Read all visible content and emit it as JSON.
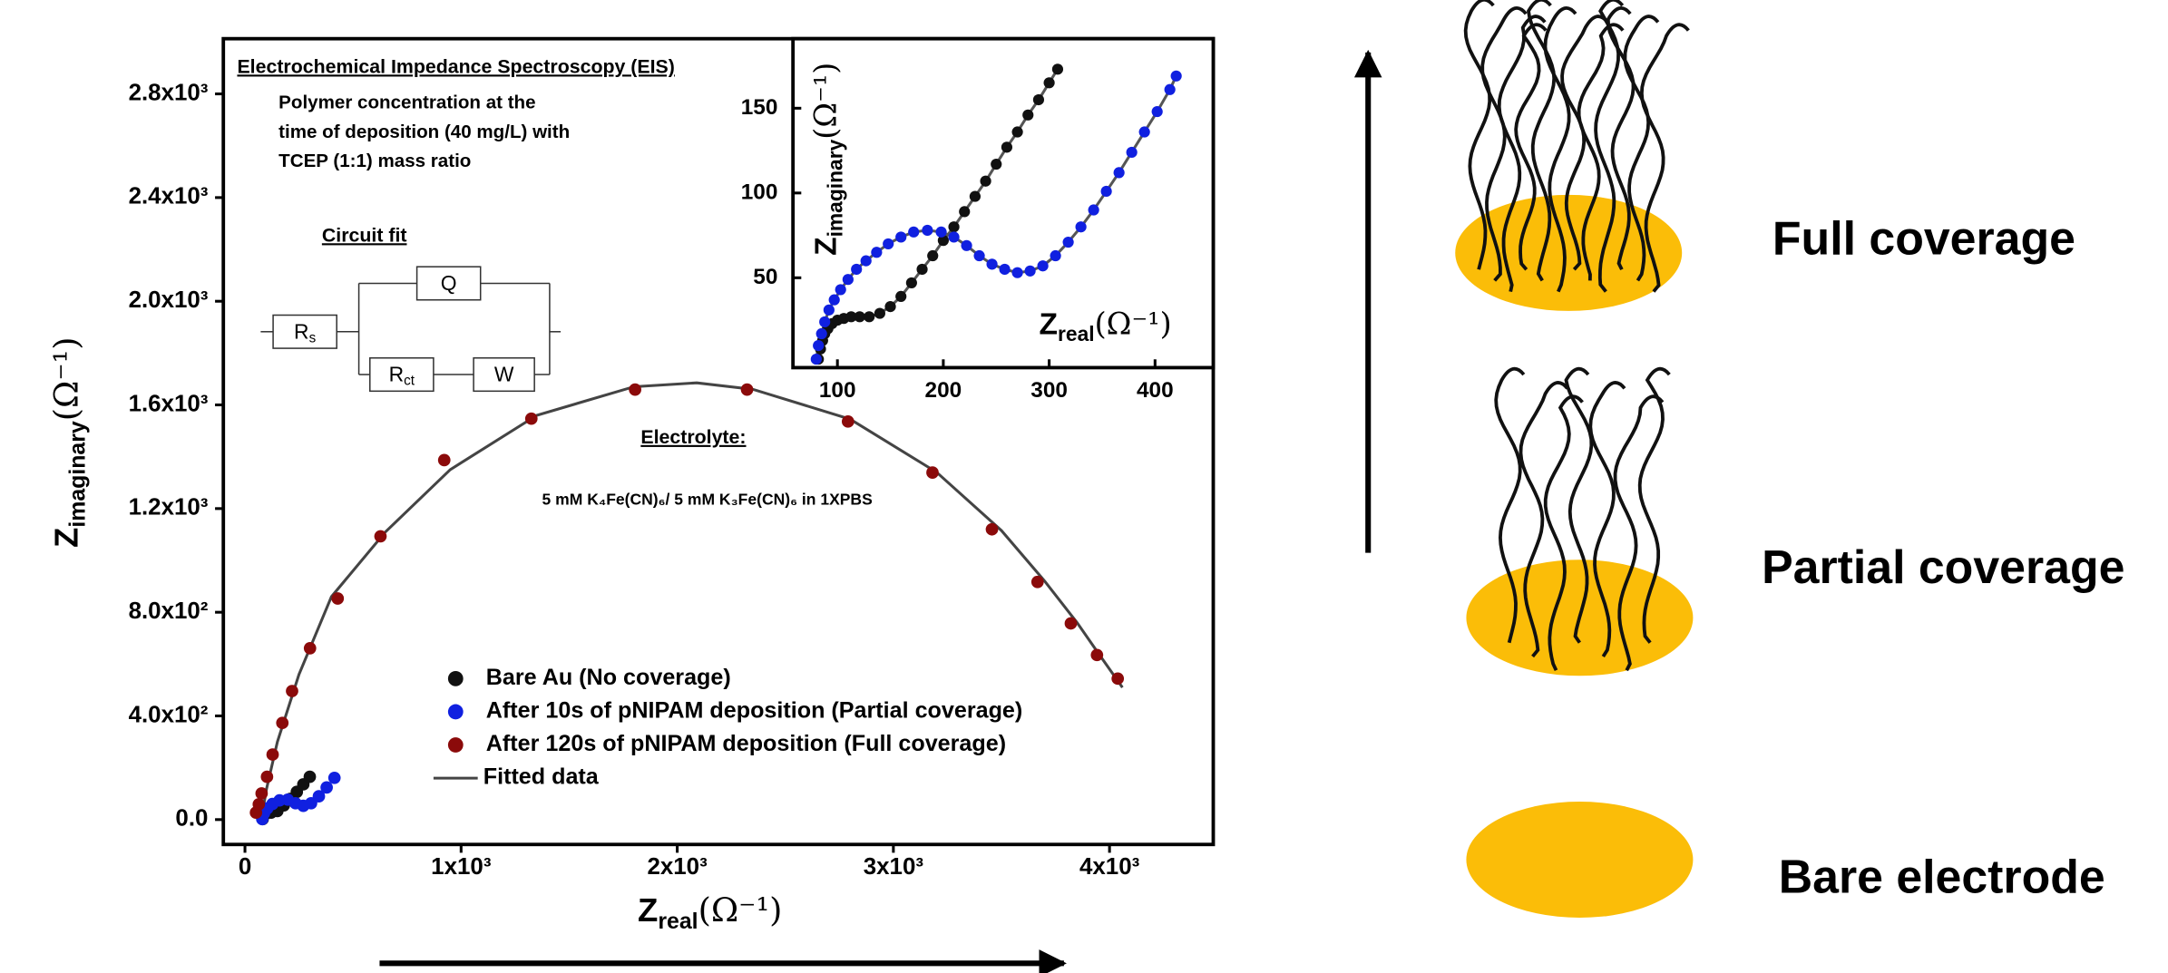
{
  "chart_data": [
    {
      "type": "scatter",
      "xlabel": [
        "Z",
        "real",
        "(Ω⁻¹)"
      ],
      "ylabel": [
        "Z",
        "imaginary",
        "(Ω⁻¹)"
      ],
      "xlim": [
        -100,
        4480
      ],
      "ylim": [
        -96,
        3013
      ],
      "xticks": [
        0,
        {
          "value": 1000,
          "label": "1x10³"
        },
        {
          "value": 2000,
          "label": "2x10³"
        },
        {
          "value": 3000,
          "label": "3x10³"
        },
        {
          "value": 4000,
          "label": "4x10³"
        }
      ],
      "yticks": [
        {
          "value": 0,
          "label": "0.0"
        },
        {
          "value": 400,
          "label": "4.0x10²"
        },
        {
          "value": 800,
          "label": "8.0x10²"
        },
        {
          "value": 1200,
          "label": "1.2x10³"
        },
        {
          "value": 1600,
          "label": "1.6x10³"
        },
        {
          "value": 2000,
          "label": "2.0x10³"
        },
        {
          "value": 2400,
          "label": "2.4x10³"
        },
        {
          "value": 2800,
          "label": "2.8x10³"
        }
      ],
      "legend": "lower center",
      "series": [
        {
          "name": "Bare Au (No coverage)",
          "color": "#111111",
          "mode": "markers",
          "x": [
            82,
            88,
            100,
            121,
            150,
            180,
            210,
            240,
            270,
            300
          ],
          "values": [
            2,
            17,
            25,
            27,
            33,
            55,
            80,
            107,
            136,
            165
          ]
        },
        {
          "name": "After 10s of pNIPAM deposition (Partial coverage)",
          "color": "#1020e0",
          "mode": "markers",
          "x": [
            80,
            88,
            103,
            127,
            160,
            198,
            234,
            270,
            306,
            342,
            378,
            414
          ],
          "values": [
            2,
            24,
            43,
            60,
            74,
            77,
            63,
            53,
            63,
            90,
            124,
            161
          ]
        },
        {
          "name": "After 120s of pNIPAM deposition (Full coverage)",
          "color": "#8b0a0a",
          "mode": "markers",
          "x": [
            51,
            64,
            77,
            102,
            128,
            173,
            218,
            301,
            429,
            627,
            922,
            1325,
            1805,
            2323,
            2790,
            3181,
            3456,
            3667,
            3821,
            3942,
            4038
          ],
          "values": [
            27,
            59,
            101,
            165,
            251,
            373,
            496,
            661,
            853,
            1093,
            1387,
            1547,
            1659,
            1659,
            1536,
            1339,
            1120,
            917,
            757,
            635,
            544
          ]
        },
        {
          "name": "Fitted data",
          "color": "#444444",
          "mode": "line",
          "x": [
            75,
            100,
            150,
            250,
            400,
            650,
            950,
            1350,
            1800,
            2090,
            2350,
            2800,
            3200,
            3500,
            3700,
            3850,
            3950,
            4060
          ],
          "values": [
            0,
            120,
            300,
            560,
            860,
            1110,
            1350,
            1560,
            1670,
            1685,
            1660,
            1545,
            1340,
            1115,
            920,
            760,
            640,
            510
          ]
        }
      ]
    },
    {
      "type": "scatter",
      "xlabel": [
        "Z",
        "real",
        "(Ω⁻¹)"
      ],
      "ylabel": [
        "Z",
        "imaginary",
        "(Ω⁻¹)"
      ],
      "xlim": [
        58,
        455
      ],
      "ylim": [
        -3,
        191
      ],
      "xticks": [
        100,
        200,
        300,
        400
      ],
      "yticks": [
        50,
        100,
        150
      ],
      "line_color": "#555555",
      "series": [
        {
          "color": "#111111",
          "mode": "lines+markers",
          "x": [
            82,
            84,
            86,
            88,
            91,
            95,
            100,
            106,
            113,
            121,
            130,
            140,
            150,
            160,
            170,
            180,
            190,
            200,
            210,
            220,
            230,
            240,
            250,
            260,
            270,
            280,
            290,
            300,
            308
          ],
          "values": [
            2,
            8,
            13,
            17,
            20,
            23,
            25,
            26,
            27,
            27,
            27,
            29,
            33,
            39,
            47,
            55,
            63,
            72,
            80,
            89,
            98,
            107,
            117,
            127,
            136,
            146,
            155,
            165,
            173
          ]
        },
        {
          "color": "#1020e0",
          "mode": "lines+markers",
          "x": [
            80,
            82,
            85,
            88,
            92,
            97,
            103,
            110,
            118,
            127,
            137,
            148,
            160,
            172,
            185,
            198,
            210,
            222,
            234,
            246,
            258,
            270,
            282,
            294,
            306,
            318,
            330,
            342,
            354,
            366,
            378,
            390,
            402,
            414,
            420
          ],
          "values": [
            2,
            10,
            17,
            24,
            31,
            37,
            43,
            49,
            55,
            60,
            65,
            70,
            74,
            77,
            78,
            77,
            74,
            69,
            63,
            58,
            55,
            53,
            54,
            57,
            63,
            71,
            80,
            90,
            101,
            112,
            124,
            136,
            148,
            161,
            169
          ]
        }
      ]
    }
  ],
  "annotations": {
    "title": "Electrochemical Impedance Spectroscopy (EIS)",
    "conditions": [
      "Polymer concentration at the",
      "time of deposition (40 mg/L) with",
      "TCEP (1:1) mass ratio"
    ],
    "circuit_title": "Circuit fit",
    "circuit": {
      "q": "Q",
      "rs": [
        "R",
        "s"
      ],
      "rct": [
        "R",
        "ct"
      ],
      "w": "W"
    },
    "electrolyte_title": "Electrolyte:",
    "electrolyte": "5 mM K₄Fe(CN)₆/ 5 mM K₃Fe(CN)₆ in 1XPBS"
  },
  "schematic": {
    "labels": [
      "Full coverage",
      "Partial coverage",
      "Bare electrode"
    ]
  }
}
